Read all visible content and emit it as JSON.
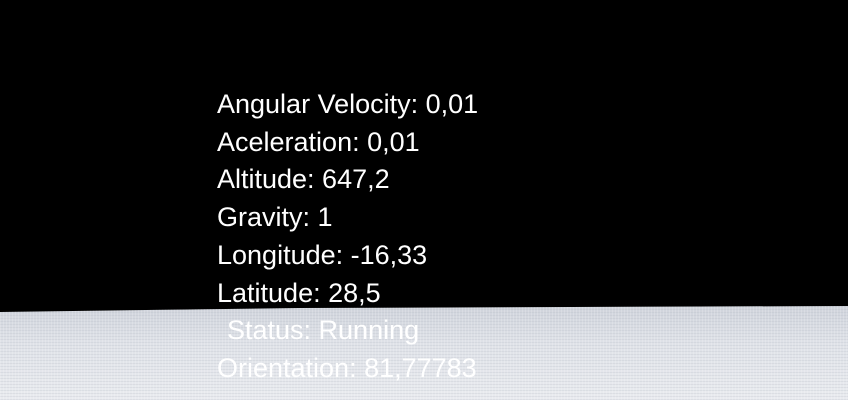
{
  "hud": {
    "lines": [
      {
        "id": "angular-velocity",
        "text": "Angular Velocity: 0,01"
      },
      {
        "id": "aceleration",
        "text": "Aceleration: 0,01"
      },
      {
        "id": "altitude",
        "text": "Altitude: 647,2"
      },
      {
        "id": "gravity",
        "text": "Gravity: 1"
      },
      {
        "id": "longitude",
        "text": "Longitude: -16,33"
      },
      {
        "id": "latitude",
        "text": "Latitude: 28,5"
      },
      {
        "id": "status",
        "text": "Status: Running"
      },
      {
        "id": "orientation",
        "text": "Orientation: 81,77783"
      }
    ]
  },
  "colors": {
    "sky": "#000000",
    "ground": "#dfe2e8",
    "text": "#ffffff"
  }
}
